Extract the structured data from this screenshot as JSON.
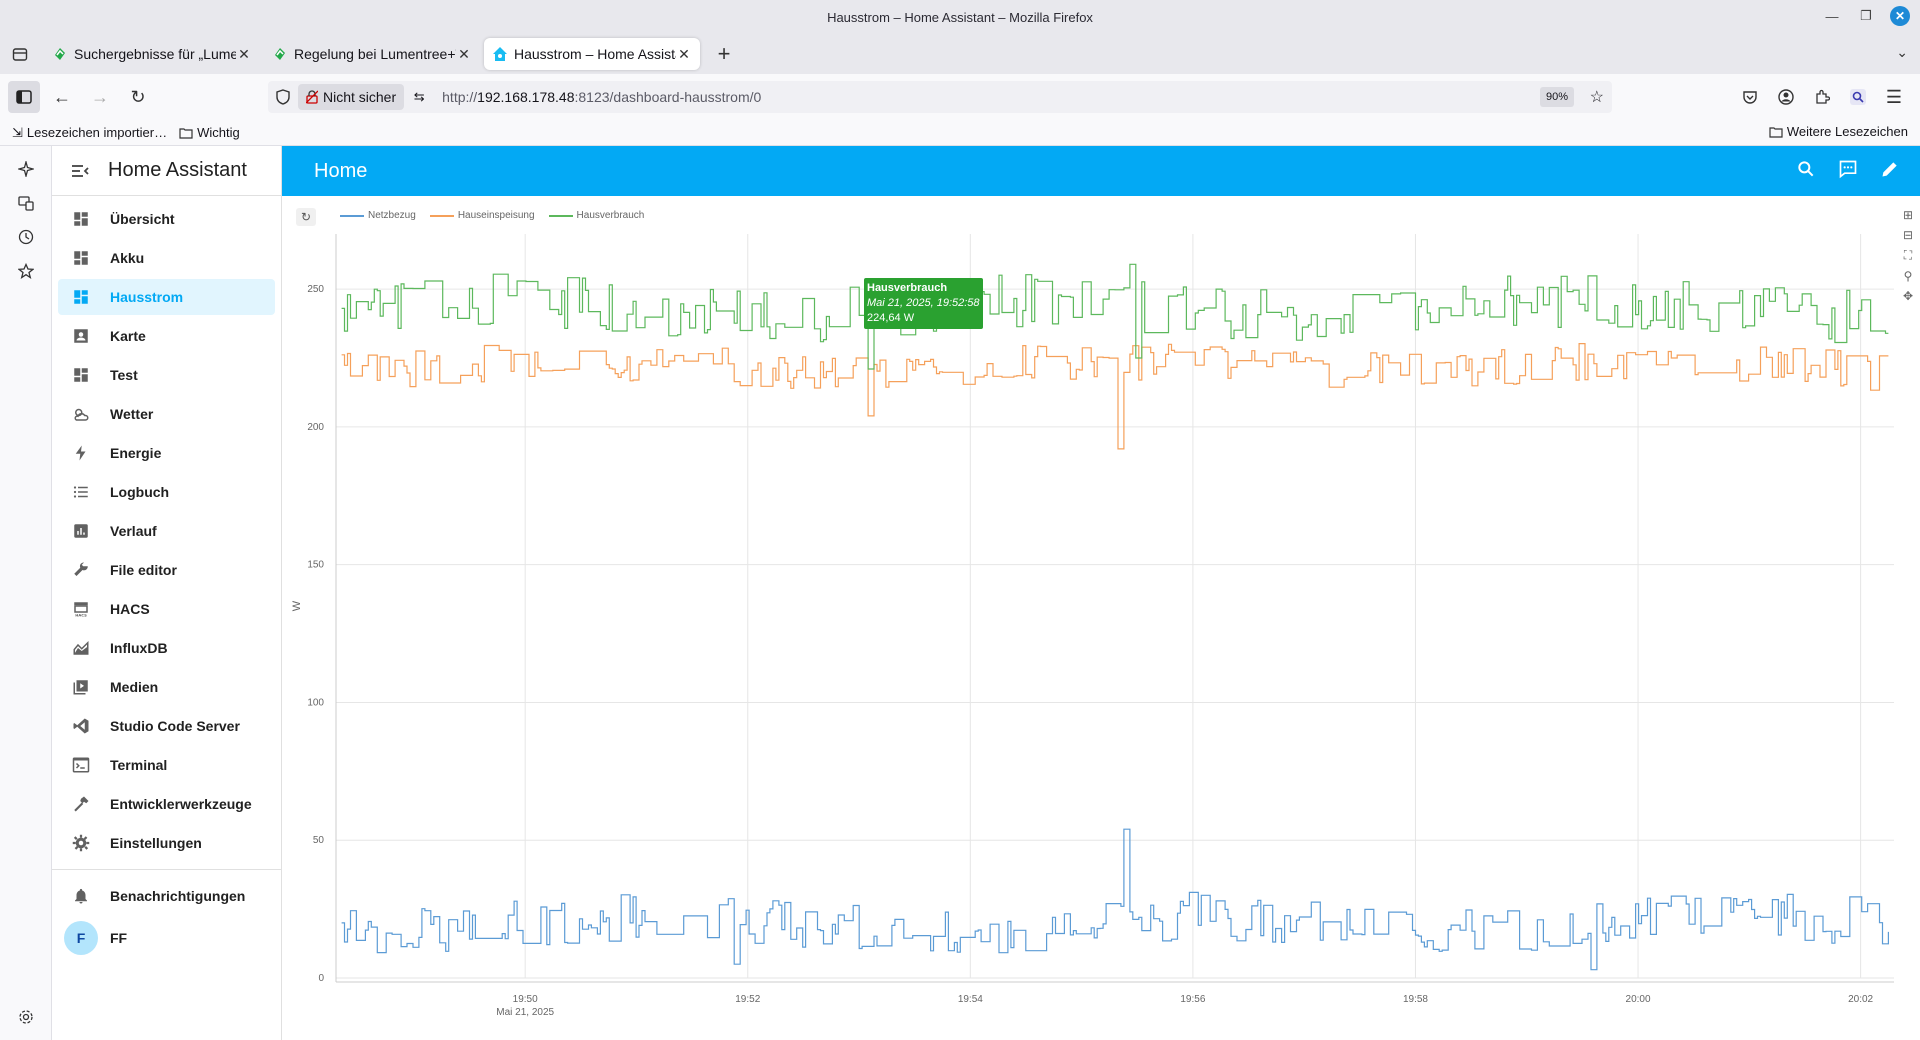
{
  "window": {
    "title": "Hausstrom – Home Assistant – Mozilla Firefox"
  },
  "tabs": [
    {
      "label": "Suchergebnisse für „Lumentree",
      "favicon_color": "#22a84a"
    },
    {
      "label": "Regelung bei Lumentree+Tr",
      "favicon_color": "#22a84a"
    },
    {
      "label": "Hausstrom – Home Assistant",
      "favicon_color": "#18bcf2",
      "active": true
    }
  ],
  "urlbar": {
    "security_label": "Nicht sicher",
    "url_prefix": "http://",
    "url_host": "192.168.178.48",
    "url_rest": ":8123/dashboard-hausstrom/0",
    "zoom": "90%"
  },
  "bookmarks": {
    "items": [
      "Lesezeichen importier…",
      "Wichtig"
    ],
    "more": "Weitere Lesezeichen"
  },
  "ha": {
    "app_title": "Home Assistant",
    "page_title": "Home",
    "nav": [
      {
        "label": "Übersicht",
        "icon": "dashboard-icon"
      },
      {
        "label": "Akku",
        "icon": "dashboard-icon"
      },
      {
        "label": "Hausstrom",
        "icon": "dashboard-icon",
        "active": true
      },
      {
        "label": "Karte",
        "icon": "map-account-icon"
      },
      {
        "label": "Test",
        "icon": "dashboard-icon"
      },
      {
        "label": "Wetter",
        "icon": "weather-icon"
      },
      {
        "label": "Energie",
        "icon": "lightning-icon"
      },
      {
        "label": "Logbuch",
        "icon": "list-icon"
      },
      {
        "label": "Verlauf",
        "icon": "chart-box-icon"
      },
      {
        "label": "File editor",
        "icon": "wrench-icon"
      },
      {
        "label": "HACS",
        "icon": "hacs-icon"
      },
      {
        "label": "InfluxDB",
        "icon": "chart-areaspline-icon"
      },
      {
        "label": "Medien",
        "icon": "play-box-icon"
      },
      {
        "label": "Studio Code Server",
        "icon": "vscode-icon"
      },
      {
        "label": "Terminal",
        "icon": "console-icon"
      },
      {
        "label": "Entwicklerwerkzeuge",
        "icon": "hammer-icon"
      },
      {
        "label": "Einstellungen",
        "icon": "cog-icon"
      }
    ],
    "notifications": "Benachrichtigungen",
    "user": {
      "initial": "F",
      "name": "FF"
    }
  },
  "chart_data": {
    "type": "line",
    "ylabel": "W",
    "ylim": [
      0,
      270
    ],
    "yticks": [
      0,
      50,
      100,
      150,
      200,
      250
    ],
    "xticks": [
      {
        "label": "19:50",
        "sub": "Mai 21, 2025"
      },
      {
        "label": "19:52"
      },
      {
        "label": "19:54"
      },
      {
        "label": "19:56"
      },
      {
        "label": "19:58"
      },
      {
        "label": "20:00"
      },
      {
        "label": "20:02"
      }
    ],
    "xlim_minutes": [
      -1.7,
      12.3
    ],
    "grid": true,
    "legend_position": "top-left",
    "series": [
      {
        "name": "Netzbezug",
        "color": "#5b9bd5",
        "base": 20,
        "amp": 9,
        "seed": 7,
        "spikes": [
          [
            5.4,
            54
          ],
          [
            1.9,
            5
          ],
          [
            9.6,
            3
          ]
        ]
      },
      {
        "name": "Hauseinspeisung",
        "color": "#f5a05a",
        "base": 222,
        "amp": 7,
        "seed": 3,
        "spikes": [
          [
            5.35,
            192
          ],
          [
            3.1,
            204
          ]
        ]
      },
      {
        "name": "Hausverbrauch",
        "color": "#5cb85c",
        "base": 243,
        "amp": 10,
        "seed": 11,
        "spikes": [
          [
            5.45,
            259
          ],
          [
            5.5,
            225
          ],
          [
            3.1,
            221
          ]
        ]
      }
    ],
    "tooltip": {
      "title": "Hausverbrauch",
      "time": "Mai 21, 2025, 19:52:58",
      "value": "224,64 W"
    }
  }
}
